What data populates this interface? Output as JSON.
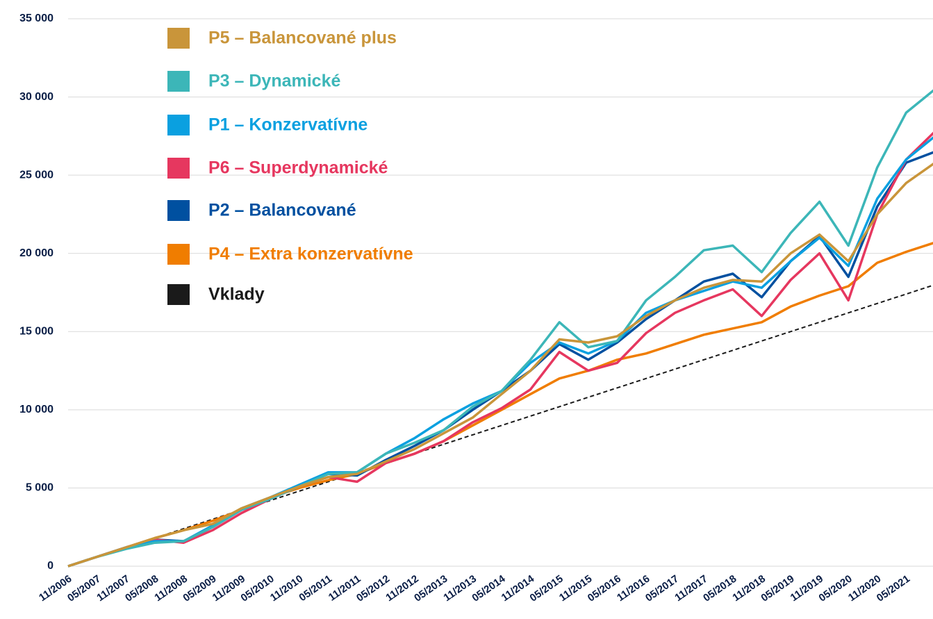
{
  "chart_data": {
    "type": "line",
    "categories": [
      "11/2006",
      "05/2007",
      "11/2007",
      "05/2008",
      "11/2008",
      "05/2009",
      "11/2009",
      "05/2010",
      "11/2010",
      "05/2011",
      "11/2011",
      "05/2012",
      "11/2012",
      "05/2013",
      "11/2013",
      "05/2014",
      "11/2014",
      "05/2015",
      "11/2015",
      "05/2016",
      "11/2016",
      "05/2017",
      "11/2017",
      "05/2018",
      "11/2018",
      "05/2019",
      "11/2019",
      "05/2020",
      "11/2020",
      "05/2021",
      null
    ],
    "series": [
      {
        "name": "P5 – Balancované plus",
        "color": "#c9953a",
        "values": [
          0,
          600,
          1200,
          1800,
          2300,
          2700,
          3700,
          4400,
          5100,
          5700,
          5900,
          6700,
          7500,
          8500,
          9500,
          11000,
          12500,
          14500,
          14300,
          14700,
          16000,
          17000,
          17800,
          18300,
          18200,
          20000,
          21200,
          19500,
          22500,
          24500,
          25800
        ]
      },
      {
        "name": "P3 – Dynamické",
        "color": "#3cb6b8",
        "values": [
          0,
          600,
          1100,
          1500,
          1600,
          2500,
          3600,
          4300,
          5100,
          5900,
          6000,
          7200,
          7900,
          8700,
          10200,
          11200,
          13200,
          15600,
          14000,
          14400,
          17000,
          18500,
          20200,
          20500,
          18800,
          21300,
          23300,
          20500,
          25500,
          29000,
          30500
        ]
      },
      {
        "name": "P1 – Konzervatívne",
        "color": "#0aa0e0",
        "values": [
          0,
          600,
          1200,
          1600,
          1600,
          2600,
          3700,
          4400,
          5200,
          6000,
          6000,
          7200,
          8200,
          9400,
          10400,
          11200,
          13000,
          14300,
          13600,
          14400,
          16200,
          17000,
          17600,
          18200,
          17800,
          19500,
          21000,
          19200,
          23500,
          26000,
          27500
        ]
      },
      {
        "name": "P6 – Superdynamické",
        "color": "#e6375f",
        "values": [
          0,
          600,
          1200,
          1700,
          1500,
          2300,
          3400,
          4300,
          5100,
          5700,
          5400,
          6600,
          7200,
          8000,
          9200,
          10100,
          11300,
          13700,
          12500,
          13000,
          14900,
          16200,
          17000,
          17700,
          16000,
          18300,
          20000,
          17000,
          22500,
          26000,
          27800
        ]
      },
      {
        "name": "P2 – Balancované",
        "color": "#0050a0",
        "values": [
          0,
          600,
          1200,
          1700,
          1600,
          2500,
          3600,
          4300,
          5200,
          5900,
          5800,
          6800,
          7700,
          8700,
          10000,
          11200,
          12500,
          14200,
          13200,
          14300,
          15800,
          17000,
          18200,
          18700,
          17200,
          19500,
          21100,
          18500,
          23000,
          25800,
          26500
        ]
      },
      {
        "name": "P4 – Extra konzervatívne",
        "color": "#f07d00",
        "values": [
          0,
          600,
          1200,
          1800,
          2300,
          2900,
          3600,
          4400,
          5000,
          5500,
          5900,
          6600,
          7200,
          8000,
          9000,
          10000,
          11000,
          12000,
          12500,
          13200,
          13600,
          14200,
          14800,
          15200,
          15600,
          16600,
          17300,
          17900,
          19400,
          20100,
          20700
        ]
      },
      {
        "name": "Vklady",
        "color": "#1a1a1a",
        "dashed": true,
        "values": [
          0,
          600,
          1200,
          1800,
          2400,
          3000,
          3600,
          4200,
          4800,
          5400,
          6000,
          6600,
          7200,
          7800,
          8400,
          9000,
          9600,
          10200,
          10800,
          11400,
          12000,
          12600,
          13200,
          13800,
          14400,
          15000,
          15600,
          16200,
          16800,
          17400,
          18000
        ]
      }
    ],
    "ylim": [
      0,
      35000
    ],
    "yticks": [
      0,
      {
        "value": 5000,
        "label": "5 000"
      },
      {
        "value": 10000,
        "label": "10 000"
      },
      {
        "value": 15000,
        "label": "15 000"
      },
      {
        "value": 20000,
        "label": "20 000"
      },
      {
        "value": 25000,
        "label": "25 000"
      },
      {
        "value": 30000,
        "label": "30 000"
      },
      {
        "value": 35000,
        "label": "35 000"
      }
    ],
    "grid": true
  }
}
